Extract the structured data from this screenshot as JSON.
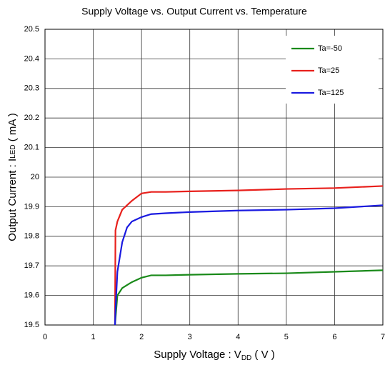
{
  "chart_data": {
    "type": "line",
    "title": "Supply Voltage vs.  Output Current vs. Temperature",
    "xlabel": {
      "text": "Supply Voltage : V",
      "sub": "DD",
      "suffix": " ( V )"
    },
    "ylabel": {
      "text": "Output Current : I",
      "sub": "LED",
      "suffix": " ( mA )"
    },
    "x": [
      1.45,
      1.46,
      1.5,
      1.6,
      1.7,
      1.8,
      2.0,
      2.2,
      2.5,
      3,
      4,
      5,
      6,
      7
    ],
    "series": [
      {
        "name": "Ta=-50",
        "color": "#1a8a1a",
        "values": [
          19.5,
          19.52,
          19.6,
          19.625,
          19.635,
          19.645,
          19.66,
          19.668,
          19.668,
          19.67,
          19.673,
          19.675,
          19.68,
          19.685
        ]
      },
      {
        "name": "Ta=25",
        "color": "#e8201c",
        "values": [
          19.5,
          19.82,
          19.85,
          19.89,
          19.905,
          19.92,
          19.945,
          19.95,
          19.95,
          19.952,
          19.955,
          19.96,
          19.963,
          19.97
        ]
      },
      {
        "name": "Ta=125",
        "color": "#1a1ae0",
        "values": [
          19.5,
          19.55,
          19.68,
          19.78,
          19.83,
          19.85,
          19.865,
          19.875,
          19.878,
          19.882,
          19.887,
          19.89,
          19.895,
          19.905
        ]
      }
    ],
    "xlim": [
      0,
      7
    ],
    "xticks": [
      0,
      1,
      2,
      3,
      4,
      5,
      6,
      7
    ],
    "ylim": [
      19.5,
      20.5
    ],
    "yticks": [
      19.5,
      19.6,
      19.7,
      19.8,
      19.9,
      20,
      20.1,
      20.2,
      20.3,
      20.4,
      20.5
    ],
    "grid": true,
    "legend": "upper right"
  }
}
